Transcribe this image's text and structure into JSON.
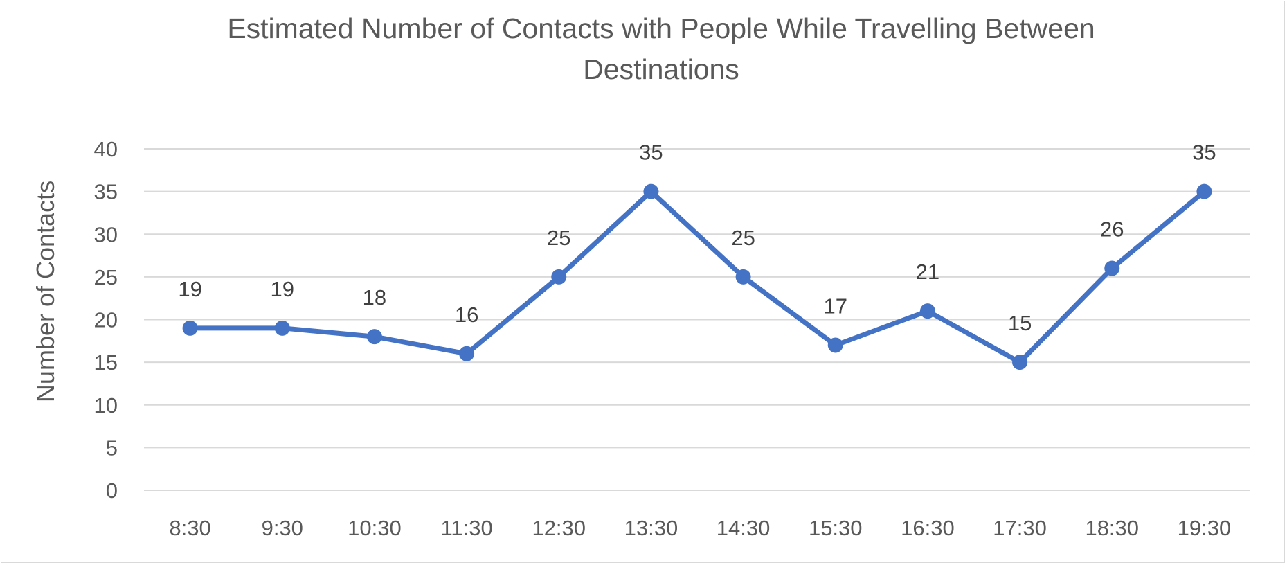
{
  "chart_data": {
    "type": "line",
    "title_line1": "Estimated Number of Contacts with People While Travelling Between",
    "title_line2": "Destinations",
    "xlabel": "",
    "ylabel": "Number of Contacts",
    "categories": [
      "8:30",
      "9:30",
      "10:30",
      "11:30",
      "12:30",
      "13:30",
      "14:30",
      "15:30",
      "16:30",
      "17:30",
      "18:30",
      "19:30"
    ],
    "series": [
      {
        "name": "",
        "values": [
          19,
          19,
          18,
          16,
          25,
          35,
          25,
          17,
          21,
          15,
          26,
          35
        ],
        "color": "#4472c4"
      }
    ],
    "data_labels": [
      "19",
      "19",
      "18",
      "16",
      "25",
      "35",
      "25",
      "17",
      "21",
      "15",
      "26",
      "35"
    ],
    "ylim": [
      0,
      40
    ],
    "yticks": [
      "0",
      "5",
      "10",
      "15",
      "20",
      "25",
      "30",
      "35",
      "40"
    ],
    "grid": true,
    "legend": "none",
    "gridline_color": "#d9d9d9"
  }
}
